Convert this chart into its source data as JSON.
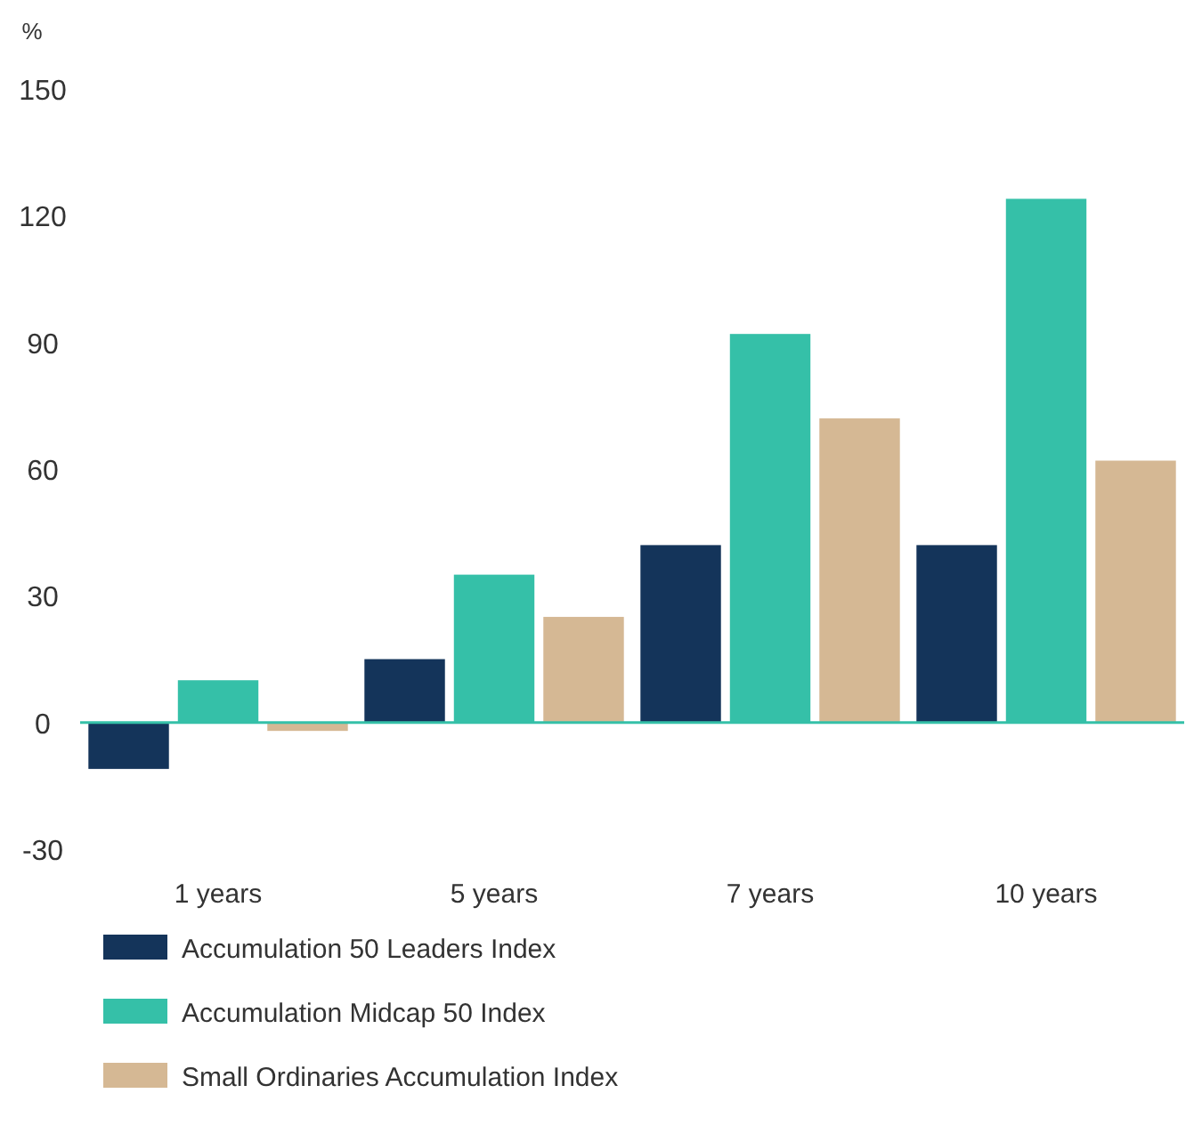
{
  "chart_data": {
    "type": "bar",
    "ylabel": "%",
    "categories": [
      "1 years",
      "5 years",
      "7 years",
      "10 years"
    ],
    "series": [
      {
        "name": "Accumulation 50 Leaders Index",
        "color": "#14345a",
        "values": [
          -11,
          15,
          42,
          42
        ]
      },
      {
        "name": "Accumulation Midcap 50 Index",
        "color": "#35c0a8",
        "values": [
          10,
          35,
          92,
          124
        ]
      },
      {
        "name": "Small Ordinaries Accumulation Index",
        "color": "#d5b894",
        "values": [
          -2,
          25,
          72,
          62
        ]
      }
    ],
    "ylim": [
      -30,
      150
    ],
    "yticks": [
      -30,
      0,
      30,
      60,
      90,
      120,
      150
    ],
    "grid": false,
    "ref_lines": [
      {
        "axis": "y",
        "value": 0,
        "color": "#35c0a8"
      }
    ],
    "legend": "bottom"
  }
}
